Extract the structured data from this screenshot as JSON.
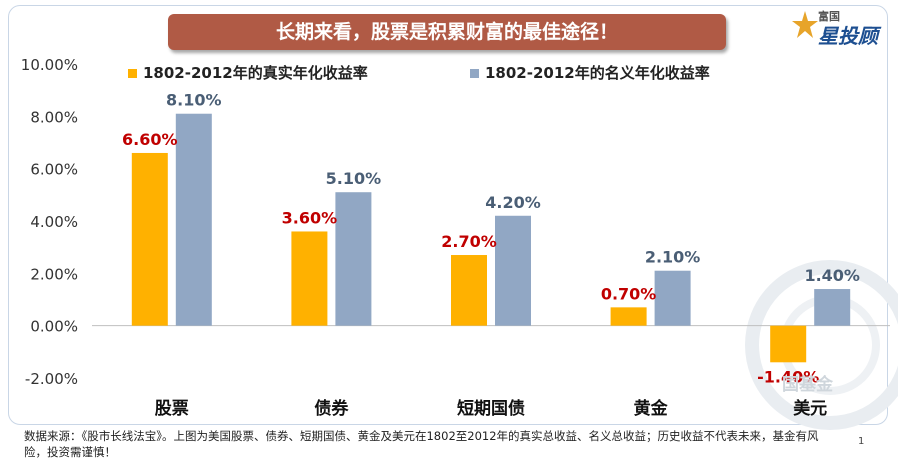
{
  "title": "长期来看，股票是积累财富的最佳途径！",
  "logo": {
    "top_text": "富国",
    "main_text": "星投顾"
  },
  "watermark": "国基金",
  "source_note": "数据来源：《股市长线法宝》。上图为美国股票、债券、短期国债、黄金及美元在1802至2012年的真实总收益、名义总收益；历史收益不代表未来，基金有风险，投资需谨慎！",
  "page_number": "1",
  "colors": {
    "real": "#FFB100",
    "nominal": "#91A7C4",
    "real_label": "#C00000",
    "nominal_label": "#4A5E75",
    "title_bg": "#B05A45"
  },
  "chart_data": {
    "type": "bar",
    "title": "长期来看，股票是积累财富的最佳途径！",
    "categories": [
      "股票",
      "债券",
      "短期国债",
      "黄金",
      "美元"
    ],
    "series": [
      {
        "name": "1802-2012年的真实年化收益率",
        "values": [
          6.6,
          3.6,
          2.7,
          0.7,
          -1.4
        ],
        "labels": [
          "6.60%",
          "3.60%",
          "2.70%",
          "0.70%",
          "-1.40%"
        ]
      },
      {
        "name": "1802-2012年的名义年化收益率",
        "values": [
          8.1,
          5.1,
          4.2,
          2.1,
          1.4
        ],
        "labels": [
          "8.10%",
          "5.10%",
          "4.20%",
          "2.10%",
          "1.40%"
        ]
      }
    ],
    "ylim": [
      -2,
      10
    ],
    "yticks": [
      10,
      8,
      6,
      4,
      2,
      0,
      -2
    ],
    "ytick_labels": [
      "10.00%",
      "8.00%",
      "6.00%",
      "4.00%",
      "2.00%",
      "0.00%",
      "-2.00%"
    ],
    "xlabel": "",
    "ylabel": "",
    "grid": false,
    "legend_position": "top"
  }
}
